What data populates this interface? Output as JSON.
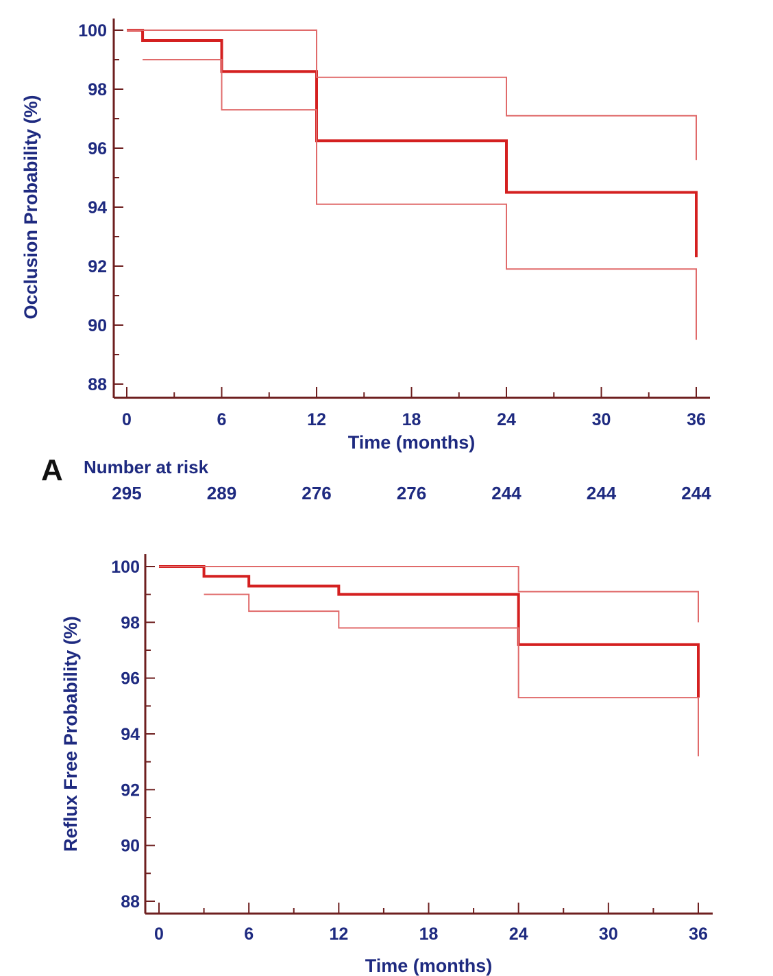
{
  "chart_data": [
    {
      "type": "line",
      "panel_label": "A",
      "xlabel": "Time (months)",
      "ylabel": "Occlusion Probability (%)",
      "xlim": [
        0,
        36
      ],
      "ylim": [
        88,
        100
      ],
      "xticks": [
        0,
        6,
        12,
        18,
        24,
        30,
        36
      ],
      "yticks": [
        88,
        90,
        92,
        94,
        96,
        98,
        100
      ],
      "grid": false,
      "series": [
        {
          "role": "estimate",
          "color": "#d42020",
          "x": [
            0,
            1,
            6,
            12,
            24,
            36,
            36
          ],
          "y": [
            100,
            99.65,
            98.6,
            96.25,
            94.5,
            94.5,
            92.3
          ]
        },
        {
          "role": "upper-ci",
          "color": "#e06a6a",
          "x": [
            0,
            12,
            24,
            36,
            36
          ],
          "y": [
            100,
            98.4,
            97.1,
            97.1,
            95.6
          ]
        },
        {
          "role": "lower-ci",
          "color": "#e06a6a",
          "x": [
            1,
            6,
            12,
            24,
            36,
            36
          ],
          "y": [
            99.0,
            97.3,
            94.1,
            91.9,
            91.9,
            89.5
          ]
        }
      ],
      "number_at_risk": {
        "title": "Number at risk",
        "x": [
          0,
          6,
          12,
          18,
          24,
          30,
          36
        ],
        "values": [
          "295",
          "289",
          "276",
          "276",
          "244",
          "244",
          "244"
        ]
      }
    },
    {
      "type": "line",
      "xlabel": "Time (months)",
      "ylabel": "Reflux Free Probability (%)",
      "xlim": [
        0,
        36
      ],
      "ylim": [
        88,
        100
      ],
      "xticks": [
        0,
        6,
        12,
        18,
        24,
        30,
        36
      ],
      "yticks": [
        88,
        90,
        92,
        94,
        96,
        98,
        100
      ],
      "grid": false,
      "series": [
        {
          "role": "estimate",
          "color": "#d42020",
          "x": [
            0,
            3,
            6,
            12,
            24,
            36,
            36
          ],
          "y": [
            100,
            99.65,
            99.3,
            99.0,
            97.2,
            97.2,
            95.3
          ]
        },
        {
          "role": "upper-ci",
          "color": "#e06a6a",
          "x": [
            0,
            24,
            36,
            36
          ],
          "y": [
            100,
            99.1,
            99.1,
            98.0
          ]
        },
        {
          "role": "lower-ci",
          "color": "#e06a6a",
          "x": [
            3,
            6,
            12,
            24,
            36,
            36
          ],
          "y": [
            99.0,
            98.4,
            97.8,
            95.3,
            95.3,
            93.2
          ]
        }
      ]
    }
  ]
}
